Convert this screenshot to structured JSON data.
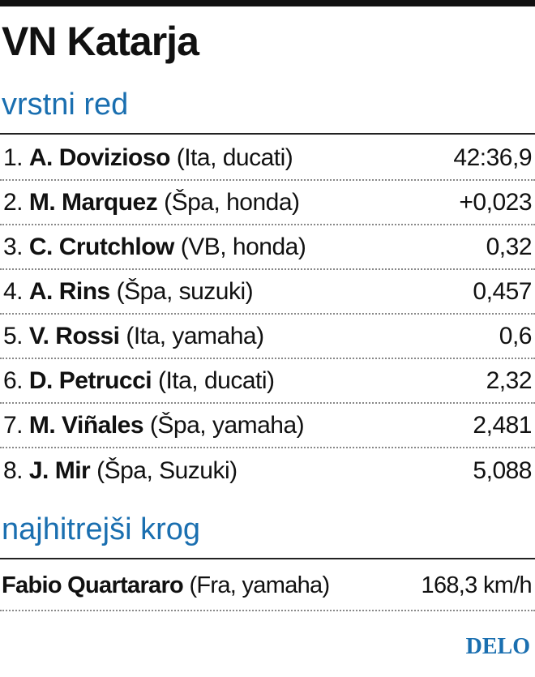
{
  "title": "VN Katarja",
  "results": {
    "heading": "vrstni red",
    "rows": [
      {
        "position": "1.",
        "rider": "A. Dovizioso",
        "details": "(Ita, ducati)",
        "time": "42:36,9"
      },
      {
        "position": "2.",
        "rider": "M. Marquez",
        "details": "(Špa, honda)",
        "time": "+0,023"
      },
      {
        "position": "3.",
        "rider": "C. Crutchlow",
        "details": "(VB, honda)",
        "time": "0,32"
      },
      {
        "position": "4.",
        "rider": "A. Rins",
        "details": "(Špa, suzuki)",
        "time": "0,457"
      },
      {
        "position": "5.",
        "rider": "V. Rossi",
        "details": "(Ita, yamaha)",
        "time": "0,6"
      },
      {
        "position": "6.",
        "rider": "D. Petrucci",
        "details": "(Ita, ducati)",
        "time": "2,32"
      },
      {
        "position": "7.",
        "rider": "M. Viñales",
        "details": "(Špa, yamaha)",
        "time": "2,481"
      },
      {
        "position": "8.",
        "rider": "J. Mir",
        "details": "(Špa, Suzuki)",
        "time": "5,088"
      }
    ]
  },
  "fastest_lap": {
    "heading": "najhitrejši krog",
    "rider": "Fabio Quartararo",
    "details": "(Fra, yamaha)",
    "speed": "168,3 km/h"
  },
  "source": "DELO"
}
